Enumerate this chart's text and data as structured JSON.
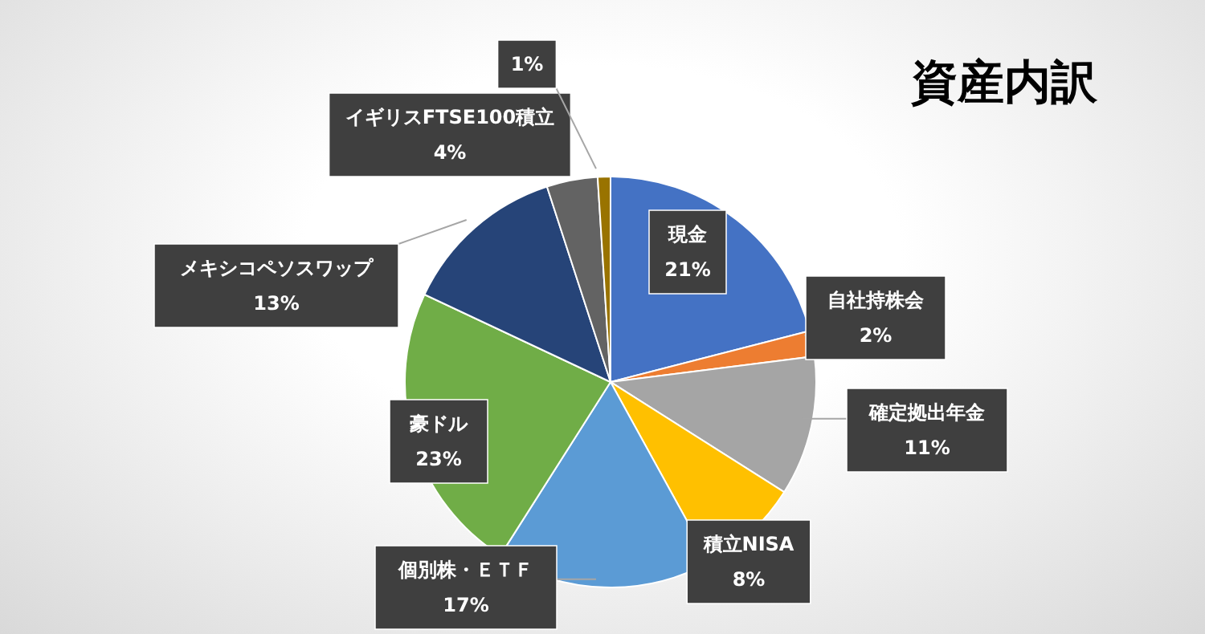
{
  "chart_data": {
    "type": "pie",
    "title": "資産内訳",
    "categories": [
      "現金",
      "自社持株会",
      "確定拠出年金",
      "積立NISA",
      "個別株・ＥＴＦ",
      "豪ドル",
      "メキシコペソスワップ",
      "イギリスFTSE100積立",
      null
    ],
    "values": [
      21,
      2,
      11,
      8,
      17,
      23,
      13,
      4,
      1
    ],
    "value_labels": [
      "21%",
      "2%",
      "11%",
      "8%",
      "17%",
      "23%",
      "13%",
      "4%",
      "1%"
    ],
    "colors": [
      "#4472c4",
      "#ed7d31",
      "#a5a5a5",
      "#ffc000",
      "#5b9bd5",
      "#70ad47",
      "#264478",
      "#636363",
      "#997300"
    ],
    "legend": false
  }
}
